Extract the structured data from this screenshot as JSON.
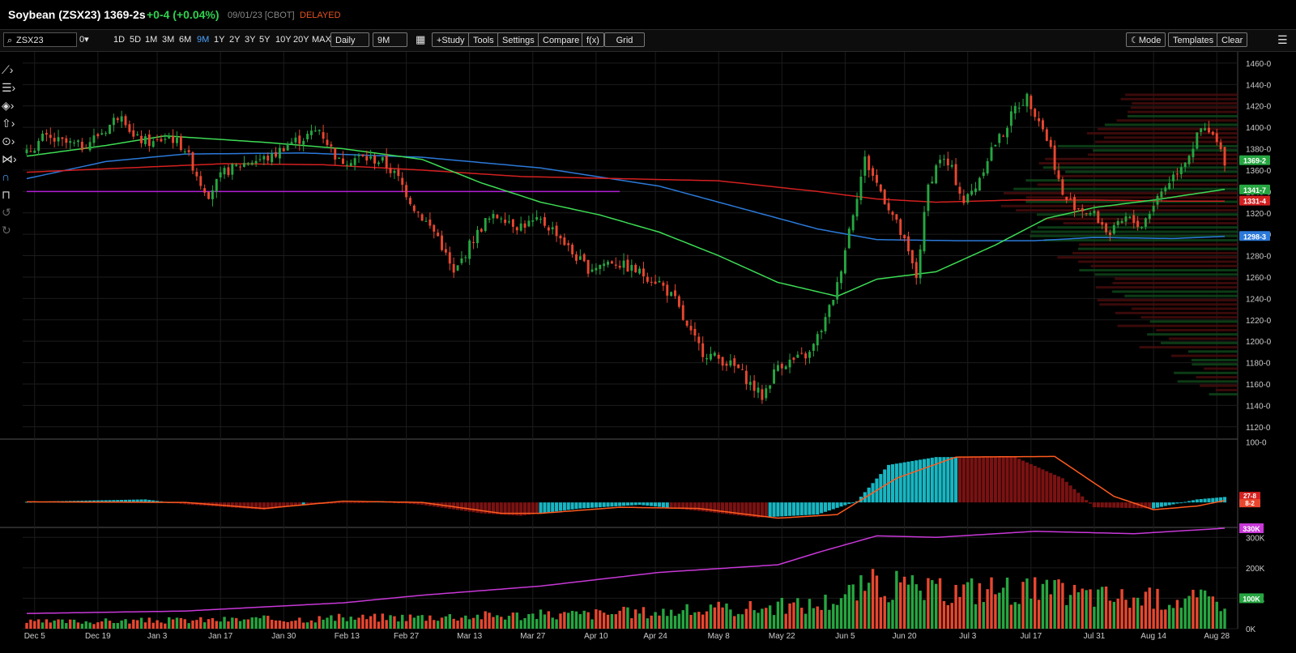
{
  "header": {
    "symbol_title": "Soybean (ZSX23) 1369-2s",
    "change": "+0-4 (+0.04%)",
    "date_meta": "09/01/23 [CBOT]",
    "delayed": "DELAYED"
  },
  "toolbar": {
    "search_value": "ZSX23",
    "layout_label": "0▾",
    "ranges": [
      "1D",
      "5D",
      "1M",
      "3M",
      "6M",
      "9M",
      "1Y",
      "2Y",
      "3Y",
      "5Y",
      "10Y",
      "20Y",
      "MAX"
    ],
    "active_range": "9M",
    "interval_select": "Daily",
    "period_select": "9M",
    "study": "+Study",
    "tools": "Tools",
    "settings": "Settings",
    "compare": "Compare",
    "fx": "f(x)",
    "grid": "Grid",
    "mode": "Mode",
    "templates": "Templates",
    "clear": "Clear"
  },
  "icons": [
    "trendline-icon",
    "fib-icon",
    "shape-icon",
    "arrow-icon",
    "marker-icon",
    "pattern-icon",
    "magnet-icon",
    "lock-icon",
    "undo-icon",
    "redo-icon",
    "menu-icon",
    "calendar-icon",
    "search-icon"
  ],
  "colors": {
    "up": "#26a641",
    "down": "#e8472f",
    "ma50": "#3ddc54",
    "ma100": "#d42020",
    "ma200": "#2b79d9",
    "oi": "#c838d8",
    "cyan": "#17b6c2",
    "darkred": "#7a1212"
  },
  "chart_data": [
    {
      "type": "candlestick",
      "title": "Soybean (ZSX23)",
      "x_ticks": [
        "Dec 5",
        "Dec 19",
        "Jan 3",
        "Jan 17",
        "Jan 30",
        "Feb 13",
        "Feb 27",
        "Mar 13",
        "Mar 27",
        "Apr 10",
        "Apr 24",
        "May 8",
        "May 22",
        "Jun 5",
        "Jun 20",
        "Jul 3",
        "Jul 17",
        "Jul 31",
        "Aug 14",
        "Aug 28"
      ],
      "y_ticks": [
        "1460-0",
        "1440-0",
        "1420-0",
        "1400-0",
        "1380-0",
        "1360-0",
        "1340-0",
        "1320-0",
        "1300-0",
        "1280-0",
        "1260-0",
        "1240-0",
        "1220-0",
        "1200-0",
        "1180-0",
        "1160-0",
        "1140-0",
        "1120-0"
      ],
      "ylim": [
        1110,
        1466
      ],
      "close_path": [
        [
          0,
          1375
        ],
        [
          4,
          1390
        ],
        [
          10,
          1385
        ],
        [
          14,
          1382
        ],
        [
          20,
          1398
        ],
        [
          24,
          1415
        ],
        [
          27,
          1390
        ],
        [
          32,
          1385
        ],
        [
          36,
          1392
        ],
        [
          40,
          1380
        ],
        [
          44,
          1348
        ],
        [
          46,
          1338
        ],
        [
          50,
          1358
        ],
        [
          56,
          1368
        ],
        [
          62,
          1372
        ],
        [
          66,
          1385
        ],
        [
          70,
          1390
        ],
        [
          74,
          1398
        ],
        [
          79,
          1368
        ],
        [
          84,
          1372
        ],
        [
          90,
          1368
        ],
        [
          94,
          1352
        ],
        [
          98,
          1325
        ],
        [
          104,
          1298
        ],
        [
          108,
          1262
        ],
        [
          112,
          1290
        ],
        [
          116,
          1312
        ],
        [
          120,
          1318
        ],
        [
          124,
          1308
        ],
        [
          130,
          1312
        ],
        [
          134,
          1302
        ],
        [
          138,
          1282
        ],
        [
          142,
          1268
        ],
        [
          148,
          1275
        ],
        [
          154,
          1266
        ],
        [
          160,
          1255
        ],
        [
          164,
          1238
        ],
        [
          167,
          1212
        ],
        [
          171,
          1190
        ],
        [
          176,
          1182
        ],
        [
          180,
          1174
        ],
        [
          183,
          1160
        ],
        [
          186,
          1148
        ],
        [
          190,
          1178
        ],
        [
          194,
          1182
        ],
        [
          198,
          1188
        ],
        [
          202,
          1220
        ],
        [
          205,
          1252
        ],
        [
          208,
          1305
        ],
        [
          212,
          1370
        ],
        [
          216,
          1340
        ],
        [
          219,
          1318
        ],
        [
          222,
          1292
        ],
        [
          225,
          1260
        ],
        [
          228,
          1345
        ],
        [
          231,
          1372
        ],
        [
          234,
          1360
        ],
        [
          237,
          1330
        ],
        [
          240,
          1345
        ],
        [
          244,
          1380
        ],
        [
          247,
          1395
        ],
        [
          250,
          1418
        ],
        [
          253,
          1428
        ],
        [
          256,
          1408
        ],
        [
          259,
          1380
        ],
        [
          262,
          1335
        ],
        [
          266,
          1325
        ],
        [
          270,
          1318
        ],
        [
          274,
          1300
        ],
        [
          278,
          1315
        ],
        [
          282,
          1308
        ],
        [
          286,
          1335
        ],
        [
          290,
          1355
        ],
        [
          294,
          1375
        ],
        [
          297,
          1398
        ],
        [
          300,
          1392
        ],
        [
          303,
          1369
        ]
      ],
      "candle_stats": {
        "n_bars": 304,
        "last": "1369-2"
      },
      "moving_averages": {
        "ma50": [
          [
            0,
            1373
          ],
          [
            20,
            1383
          ],
          [
            35,
            1392
          ],
          [
            60,
            1386
          ],
          [
            80,
            1380
          ],
          [
            100,
            1370
          ],
          [
            115,
            1348
          ],
          [
            130,
            1330
          ],
          [
            145,
            1318
          ],
          [
            160,
            1302
          ],
          [
            175,
            1280
          ],
          [
            190,
            1255
          ],
          [
            205,
            1242
          ],
          [
            215,
            1258
          ],
          [
            230,
            1265
          ],
          [
            245,
            1290
          ],
          [
            258,
            1315
          ],
          [
            270,
            1325
          ],
          [
            285,
            1332
          ],
          [
            303,
            1342
          ]
        ],
        "ma100": [
          [
            0,
            1358
          ],
          [
            25,
            1362
          ],
          [
            50,
            1366
          ],
          [
            75,
            1365
          ],
          [
            100,
            1360
          ],
          [
            125,
            1354
          ],
          [
            150,
            1352
          ],
          [
            175,
            1350
          ],
          [
            200,
            1340
          ],
          [
            215,
            1333
          ],
          [
            230,
            1330
          ],
          [
            250,
            1332
          ],
          [
            270,
            1332
          ],
          [
            290,
            1331
          ],
          [
            303,
            1331
          ]
        ],
        "ma200": [
          [
            0,
            1352
          ],
          [
            20,
            1368
          ],
          [
            40,
            1375
          ],
          [
            70,
            1376
          ],
          [
            100,
            1372
          ],
          [
            130,
            1362
          ],
          [
            160,
            1345
          ],
          [
            180,
            1325
          ],
          [
            200,
            1305
          ],
          [
            215,
            1295
          ],
          [
            235,
            1294
          ],
          [
            255,
            1294
          ],
          [
            270,
            1297
          ],
          [
            290,
            1296
          ],
          [
            303,
            1298
          ]
        ],
        "support": {
          "value": 1340,
          "from": 0,
          "to": 150
        }
      },
      "last_price_tags": [
        {
          "text": "1369-2",
          "value": 1369.25,
          "color": "#26a641"
        },
        {
          "text": "1341-7",
          "value": 1341.9,
          "color": "#26a641"
        },
        {
          "text": "1331-4",
          "value": 1331.5,
          "color": "#d42020"
        },
        {
          "text": "1298-3",
          "value": 1298.4,
          "color": "#2b79d9"
        }
      ]
    },
    {
      "type": "bar",
      "title": "Oscillator",
      "y_ticks": [
        "100-0"
      ],
      "ylim": [
        -40,
        102
      ],
      "histogram": [
        [
          0,
          1
        ],
        [
          30,
          5
        ],
        [
          40,
          -3
        ],
        [
          60,
          -12
        ],
        [
          70,
          -4
        ],
        [
          90,
          2
        ],
        [
          100,
          -4
        ],
        [
          115,
          -18
        ],
        [
          125,
          -22
        ],
        [
          140,
          -10
        ],
        [
          155,
          -4
        ],
        [
          170,
          -14
        ],
        [
          185,
          -25
        ],
        [
          200,
          -20
        ],
        [
          210,
          2
        ],
        [
          218,
          62
        ],
        [
          230,
          75
        ],
        [
          250,
          75
        ],
        [
          262,
          40
        ],
        [
          270,
          -8
        ],
        [
          285,
          -10
        ],
        [
          296,
          5
        ],
        [
          303,
          9
        ]
      ],
      "signal": [
        [
          0,
          1
        ],
        [
          40,
          0
        ],
        [
          60,
          -10
        ],
        [
          80,
          2
        ],
        [
          100,
          0
        ],
        [
          120,
          -18
        ],
        [
          130,
          -18
        ],
        [
          150,
          -8
        ],
        [
          170,
          -10
        ],
        [
          190,
          -26
        ],
        [
          205,
          -20
        ],
        [
          220,
          40
        ],
        [
          235,
          75
        ],
        [
          260,
          76
        ],
        [
          275,
          10
        ],
        [
          285,
          -12
        ],
        [
          296,
          -6
        ],
        [
          303,
          3
        ]
      ],
      "tags": [
        {
          "text": "27-8",
          "color": "#d42020"
        },
        {
          "text": "8-2",
          "color": "#e8472f"
        }
      ]
    },
    {
      "type": "bar",
      "title": "Volume / Open Interest",
      "y_ticks": [
        "300K",
        "200K",
        "100K",
        "0K"
      ],
      "ylim": [
        0,
        330000
      ],
      "volume_path": [
        [
          0,
          22
        ],
        [
          40,
          28
        ],
        [
          80,
          35
        ],
        [
          110,
          42
        ],
        [
          140,
          48
        ],
        [
          170,
          60
        ],
        [
          200,
          80
        ],
        [
          215,
          150
        ],
        [
          230,
          120
        ],
        [
          245,
          135
        ],
        [
          260,
          120
        ],
        [
          280,
          100
        ],
        [
          303,
          95
        ]
      ],
      "open_interest": [
        [
          0,
          50
        ],
        [
          40,
          58
        ],
        [
          80,
          85
        ],
        [
          100,
          110
        ],
        [
          130,
          140
        ],
        [
          160,
          185
        ],
        [
          190,
          210
        ],
        [
          200,
          250
        ],
        [
          215,
          305
        ],
        [
          230,
          300
        ],
        [
          255,
          320
        ],
        [
          280,
          312
        ],
        [
          303,
          330
        ]
      ],
      "tags": [
        {
          "text": "330K",
          "color": "#c838d8"
        },
        {
          "text": "100K",
          "color": "#26a641"
        }
      ]
    }
  ]
}
